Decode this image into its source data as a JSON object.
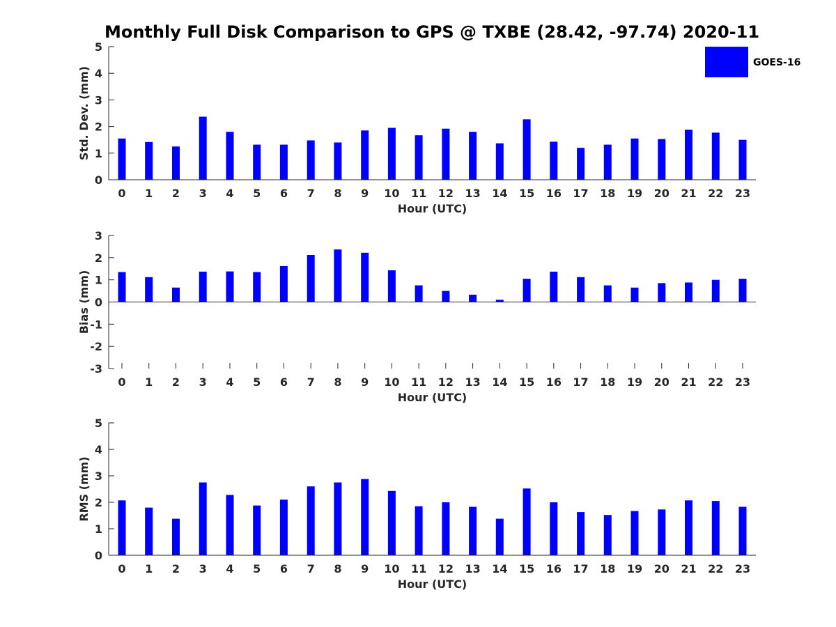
{
  "chart_data": [
    {
      "type": "bar",
      "title": "Monthly Full Disk Comparison to GPS @ TXBE (28.42, -97.74) 2020-11",
      "xlabel": "Hour (UTC)",
      "ylabel": "Std. Dev. (mm)",
      "ylim": [
        0,
        5
      ],
      "yticks": [
        "0",
        "1",
        "2",
        "3",
        "4",
        "5"
      ],
      "categories": [
        "0",
        "1",
        "2",
        "3",
        "4",
        "5",
        "6",
        "7",
        "8",
        "9",
        "10",
        "11",
        "12",
        "13",
        "14",
        "15",
        "16",
        "17",
        "18",
        "19",
        "20",
        "21",
        "22",
        "23"
      ],
      "series": [
        {
          "name": "GOES-16",
          "color": "#0000ff",
          "values": [
            1.55,
            1.42,
            1.25,
            2.37,
            1.8,
            1.32,
            1.32,
            1.48,
            1.4,
            1.85,
            1.95,
            1.67,
            1.92,
            1.8,
            1.37,
            2.27,
            1.43,
            1.2,
            1.32,
            1.55,
            1.53,
            1.88,
            1.77,
            1.5
          ]
        }
      ],
      "legend": {
        "label": "GOES-16",
        "position": "top-right"
      },
      "grid": false
    },
    {
      "type": "bar",
      "xlabel": "Hour (UTC)",
      "ylabel": "Bias (mm)",
      "ylim": [
        -3,
        3
      ],
      "yticks": [
        "-3",
        "-2",
        "-1",
        "0",
        "1",
        "2",
        "3"
      ],
      "categories": [
        "0",
        "1",
        "2",
        "3",
        "4",
        "5",
        "6",
        "7",
        "8",
        "9",
        "10",
        "11",
        "12",
        "13",
        "14",
        "15",
        "16",
        "17",
        "18",
        "19",
        "20",
        "21",
        "22",
        "23"
      ],
      "series": [
        {
          "name": "GOES-16",
          "color": "#0000ff",
          "values": [
            1.35,
            1.12,
            0.65,
            1.37,
            1.38,
            1.35,
            1.62,
            2.12,
            2.37,
            2.22,
            1.43,
            0.75,
            0.5,
            0.33,
            0.1,
            1.05,
            1.37,
            1.12,
            0.75,
            0.65,
            0.85,
            0.88,
            1.0,
            1.05
          ]
        }
      ],
      "grid": false
    },
    {
      "type": "bar",
      "xlabel": "Hour (UTC)",
      "ylabel": "RMS (mm)",
      "ylim": [
        0,
        5
      ],
      "yticks": [
        "0",
        "1",
        "2",
        "3",
        "4",
        "5"
      ],
      "categories": [
        "0",
        "1",
        "2",
        "3",
        "4",
        "5",
        "6",
        "7",
        "8",
        "9",
        "10",
        "11",
        "12",
        "13",
        "14",
        "15",
        "16",
        "17",
        "18",
        "19",
        "20",
        "21",
        "22",
        "23"
      ],
      "series": [
        {
          "name": "GOES-16",
          "color": "#0000ff",
          "values": [
            2.07,
            1.8,
            1.38,
            2.75,
            2.28,
            1.88,
            2.1,
            2.6,
            2.75,
            2.88,
            2.43,
            1.85,
            2.0,
            1.83,
            1.38,
            2.52,
            2.0,
            1.63,
            1.52,
            1.67,
            1.73,
            2.07,
            2.05,
            1.83
          ]
        }
      ],
      "grid": false
    }
  ]
}
